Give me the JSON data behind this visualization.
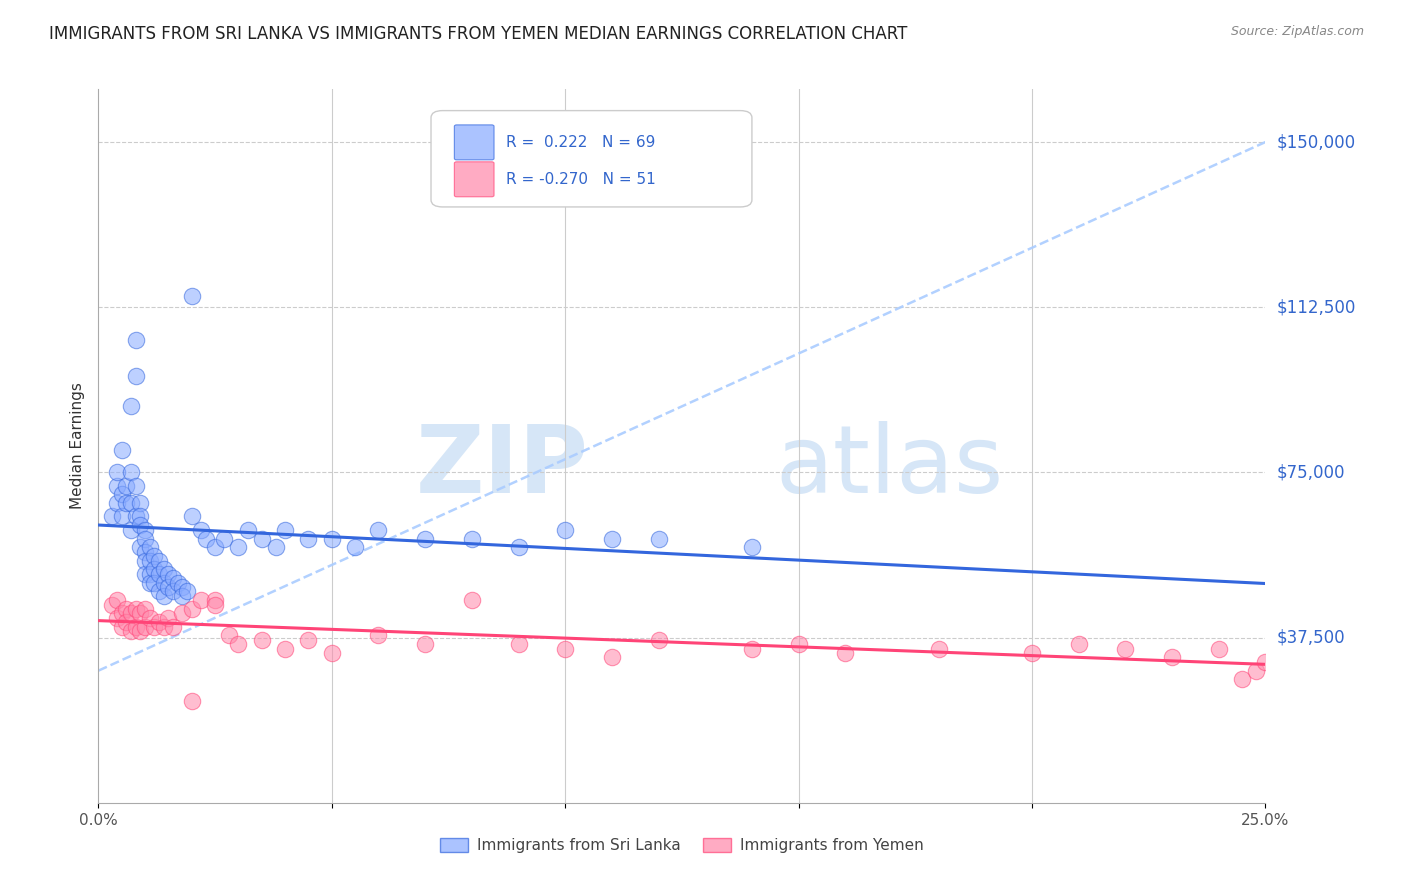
{
  "title": "IMMIGRANTS FROM SRI LANKA VS IMMIGRANTS FROM YEMEN MEDIAN EARNINGS CORRELATION CHART",
  "source": "Source: ZipAtlas.com",
  "ylabel": "Median Earnings",
  "ytick_labels": [
    "$37,500",
    "$75,000",
    "$112,500",
    "$150,000"
  ],
  "ytick_values": [
    37500,
    75000,
    112500,
    150000
  ],
  "ylim": [
    0,
    162000
  ],
  "xlim": [
    0.0,
    0.25
  ],
  "legend_sri_lanka": "Immigrants from Sri Lanka",
  "legend_yemen": "Immigrants from Yemen",
  "R_sri_lanka": 0.222,
  "N_sri_lanka": 69,
  "R_yemen": -0.27,
  "N_yemen": 51,
  "color_sri_lanka": "#88aaff",
  "color_yemen": "#ff88aa",
  "color_trend_sri_lanka": "#3366dd",
  "color_trend_yemen": "#ff4477",
  "color_dashed_trend": "#aaccff",
  "watermark_zip": "ZIP",
  "watermark_atlas": "atlas",
  "title_fontsize": 12,
  "source_fontsize": 9,
  "axis_label_fontsize": 11,
  "tick_fontsize": 11,
  "sl_x": [
    0.003,
    0.004,
    0.004,
    0.004,
    0.005,
    0.005,
    0.005,
    0.006,
    0.006,
    0.007,
    0.007,
    0.007,
    0.007,
    0.008,
    0.008,
    0.008,
    0.008,
    0.009,
    0.009,
    0.009,
    0.009,
    0.01,
    0.01,
    0.01,
    0.01,
    0.01,
    0.011,
    0.011,
    0.011,
    0.011,
    0.012,
    0.012,
    0.012,
    0.013,
    0.013,
    0.013,
    0.014,
    0.014,
    0.014,
    0.015,
    0.015,
    0.016,
    0.016,
    0.017,
    0.018,
    0.018,
    0.019,
    0.02,
    0.02,
    0.022,
    0.023,
    0.025,
    0.027,
    0.03,
    0.032,
    0.035,
    0.038,
    0.04,
    0.045,
    0.05,
    0.055,
    0.06,
    0.07,
    0.08,
    0.09,
    0.1,
    0.11,
    0.12,
    0.14
  ],
  "sl_y": [
    65000,
    72000,
    68000,
    75000,
    70000,
    80000,
    65000,
    68000,
    72000,
    90000,
    75000,
    68000,
    62000,
    105000,
    97000,
    72000,
    65000,
    68000,
    65000,
    63000,
    58000,
    62000,
    60000,
    57000,
    55000,
    52000,
    58000,
    55000,
    52000,
    50000,
    56000,
    53000,
    50000,
    55000,
    52000,
    48000,
    53000,
    50000,
    47000,
    52000,
    49000,
    51000,
    48000,
    50000,
    49000,
    47000,
    48000,
    115000,
    65000,
    62000,
    60000,
    58000,
    60000,
    58000,
    62000,
    60000,
    58000,
    62000,
    60000,
    60000,
    58000,
    62000,
    60000,
    60000,
    58000,
    62000,
    60000,
    60000,
    58000
  ],
  "ye_x": [
    0.003,
    0.004,
    0.004,
    0.005,
    0.005,
    0.006,
    0.006,
    0.007,
    0.007,
    0.008,
    0.008,
    0.009,
    0.009,
    0.01,
    0.01,
    0.011,
    0.012,
    0.013,
    0.014,
    0.015,
    0.016,
    0.018,
    0.02,
    0.022,
    0.025,
    0.025,
    0.028,
    0.03,
    0.035,
    0.04,
    0.045,
    0.05,
    0.06,
    0.07,
    0.08,
    0.09,
    0.1,
    0.11,
    0.12,
    0.14,
    0.15,
    0.16,
    0.18,
    0.2,
    0.21,
    0.22,
    0.23,
    0.24,
    0.245,
    0.248,
    0.25
  ],
  "ye_y": [
    45000,
    42000,
    46000,
    43000,
    40000,
    44000,
    41000,
    43000,
    39000,
    44000,
    40000,
    43000,
    39000,
    44000,
    40000,
    42000,
    40000,
    41000,
    40000,
    42000,
    40000,
    43000,
    44000,
    46000,
    46000,
    45000,
    38000,
    36000,
    37000,
    35000,
    37000,
    34000,
    38000,
    36000,
    46000,
    36000,
    35000,
    33000,
    37000,
    35000,
    36000,
    34000,
    35000,
    34000,
    36000,
    35000,
    33000,
    35000,
    28000,
    30000,
    32000
  ],
  "ye_outlier_x": [
    0.02
  ],
  "ye_outlier_y": [
    23000
  ]
}
